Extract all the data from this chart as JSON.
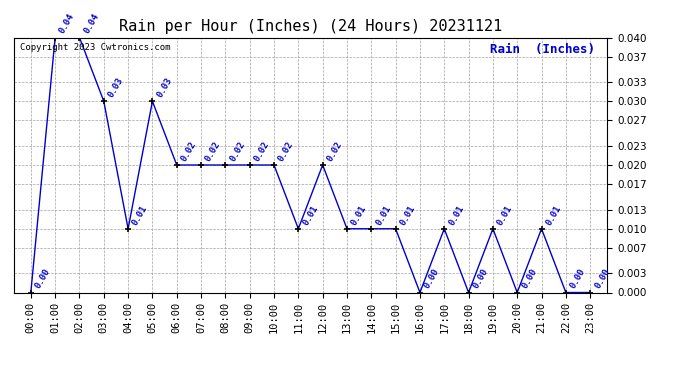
{
  "title": "Rain per Hour (Inches) (24 Hours) 20231121",
  "legend_label": "Rain  (Inches)",
  "copyright_text": "Copyright 2023 Cwtronics.com",
  "hours": [
    0,
    1,
    2,
    3,
    4,
    5,
    6,
    7,
    8,
    9,
    10,
    11,
    12,
    13,
    14,
    15,
    16,
    17,
    18,
    19,
    20,
    21,
    22,
    23
  ],
  "x_labels": [
    "00:00",
    "01:00",
    "02:00",
    "03:00",
    "04:00",
    "05:00",
    "06:00",
    "07:00",
    "08:00",
    "09:00",
    "10:00",
    "11:00",
    "12:00",
    "13:00",
    "14:00",
    "15:00",
    "16:00",
    "17:00",
    "18:00",
    "19:00",
    "20:00",
    "21:00",
    "22:00",
    "23:00"
  ],
  "values": [
    0.0,
    0.04,
    0.04,
    0.03,
    0.01,
    0.03,
    0.02,
    0.02,
    0.02,
    0.02,
    0.02,
    0.01,
    0.02,
    0.01,
    0.01,
    0.01,
    0.0,
    0.01,
    0.0,
    0.01,
    0.0,
    0.01,
    0.0,
    0.0
  ],
  "line_color": "#0000cc",
  "marker_color": "#000000",
  "label_color": "#0000cc",
  "background_color": "#ffffff",
  "grid_color": "#999999",
  "ylim": [
    0.0,
    0.04
  ],
  "yticks": [
    0.0,
    0.003,
    0.007,
    0.01,
    0.013,
    0.017,
    0.02,
    0.023,
    0.027,
    0.03,
    0.033,
    0.037,
    0.04
  ],
  "title_fontsize": 11,
  "label_fontsize": 6.5,
  "tick_fontsize": 7.5,
  "legend_fontsize": 9,
  "copyright_fontsize": 6.5,
  "figwidth": 6.9,
  "figheight": 3.75,
  "dpi": 100
}
